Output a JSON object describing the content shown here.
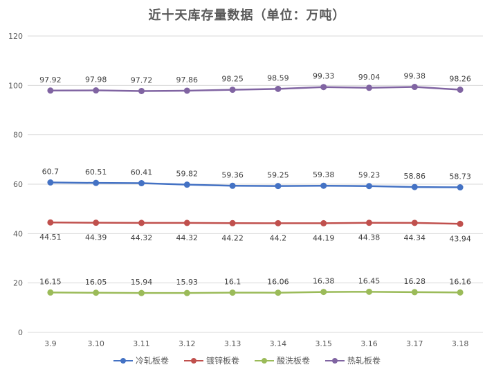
{
  "chart_data": {
    "type": "line",
    "title": "近十天库存量数据（单位：万吨）",
    "categories": [
      "3.9",
      "3.10",
      "3.11",
      "3.12",
      "3.13",
      "3.14",
      "3.15",
      "3.16",
      "3.17",
      "3.18"
    ],
    "ylim": [
      0,
      120
    ],
    "yticks": [
      0,
      20,
      40,
      60,
      80,
      100,
      120
    ],
    "grid": true,
    "legend_position": "bottom",
    "series": [
      {
        "name": "冷轧板卷",
        "color": "#4472c4",
        "label_position": "above",
        "values": [
          60.7,
          60.51,
          60.41,
          59.82,
          59.36,
          59.25,
          59.38,
          59.23,
          58.86,
          58.73
        ]
      },
      {
        "name": "镀锌板卷",
        "color": "#c0504d",
        "label_position": "below",
        "values": [
          44.51,
          44.39,
          44.32,
          44.32,
          44.22,
          44.2,
          44.19,
          44.38,
          44.34,
          43.94
        ]
      },
      {
        "name": "酸洗板卷",
        "color": "#9bbb59",
        "label_position": "above",
        "values": [
          16.15,
          16.05,
          15.94,
          15.93,
          16.1,
          16.06,
          16.38,
          16.45,
          16.28,
          16.16
        ]
      },
      {
        "name": "热轧板卷",
        "color": "#8064a2",
        "label_position": "above",
        "values": [
          97.92,
          97.98,
          97.72,
          97.86,
          98.25,
          98.59,
          99.33,
          99.04,
          99.38,
          98.26
        ]
      }
    ]
  }
}
